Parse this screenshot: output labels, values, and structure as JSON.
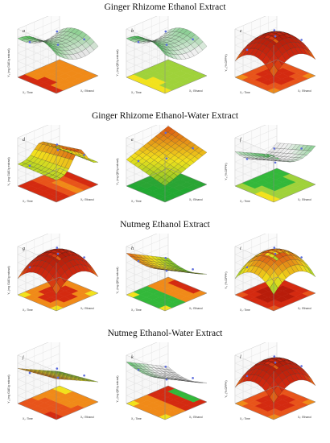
{
  "figure": {
    "sections": [
      {
        "title": "Ginger Rhizome Ethanol Extract"
      },
      {
        "title": "Ginger Rhizome Ethanol-Water Extract"
      },
      {
        "title": "Nutmeg Ethanol Extract"
      },
      {
        "title": "Nutmeg Ethanol-Water Extract"
      }
    ]
  },
  "colors": {
    "red": "#d42a10",
    "orange": "#f08a18",
    "yellow": "#f2e21c",
    "green": "#33b83a",
    "gray": "#c8c8c8",
    "design_point": "#5b6bdc"
  },
  "chart_data": [
    {
      "type": "surface3d",
      "panel_label": "a",
      "surface_shape": "saddle",
      "colormap": "gray-red",
      "floor_contour": "red-yellow-green",
      "ylabel": "Y₁ (mg GAE/g extract)",
      "xlabel": "X₁: Ethanol",
      "zlabel": "X₂: Time"
    },
    {
      "type": "surface3d",
      "panel_label": "b",
      "surface_shape": "saddle",
      "colormap": "gray-green",
      "floor_contour": "yellow-green",
      "ylabel": "Y₂ (mg QE/g extract)",
      "xlabel": "X₁: Ethanol",
      "zlabel": "X₂: Time"
    },
    {
      "type": "surface3d",
      "panel_label": "c",
      "surface_shape": "dome",
      "colormap": "red",
      "floor_contour": "red-yellow",
      "ylabel": "Y₃ (% DPPH)",
      "xlabel": "X₁: Ethanol",
      "zlabel": "X₂: Time"
    },
    {
      "type": "surface3d",
      "panel_label": "d",
      "surface_shape": "ridge",
      "colormap": "red-green",
      "floor_contour": "red-orange",
      "ylabel": "Y₁ (mg GAE/g extract)",
      "xlabel": "X₁: Ethanol",
      "zlabel": "X₂: Time"
    },
    {
      "type": "surface3d",
      "panel_label": "e",
      "surface_shape": "plane",
      "colormap": "green-red",
      "floor_contour": "green",
      "ylabel": "Y₂ (mg QE/g extract)",
      "xlabel": "X₁: Ethanol",
      "zlabel": "X₂: Time"
    },
    {
      "type": "surface3d",
      "panel_label": "f",
      "surface_shape": "valley",
      "colormap": "gray-green",
      "floor_contour": "yellow-green",
      "ylabel": "Y₃ (% DPPH)",
      "xlabel": "X₁: Ethanol",
      "zlabel": "X₂: Time"
    },
    {
      "type": "surface3d",
      "panel_label": "g",
      "surface_shape": "dome",
      "colormap": "red",
      "floor_contour": "red-green",
      "ylabel": "Y₁ (mg GAE/g extract)",
      "xlabel": "X₁: Ethanol",
      "zlabel": "X₂: Time"
    },
    {
      "type": "surface3d",
      "panel_label": "h",
      "surface_shape": "fold",
      "colormap": "green-red",
      "floor_contour": "yellow-green-red",
      "ylabel": "Y₂ (mg QE/g extract)",
      "xlabel": "X₁: Ethanol",
      "zlabel": "X₂: Time"
    },
    {
      "type": "surface3d",
      "panel_label": "i",
      "surface_shape": "dome",
      "colormap": "red-green",
      "floor_contour": "red",
      "ylabel": "Y₃ (% DPPH)",
      "xlabel": "X₁: Ethanol",
      "zlabel": "X₂: Time"
    },
    {
      "type": "surface3d",
      "panel_label": "j",
      "surface_shape": "slope",
      "colormap": "red-green",
      "floor_contour": "red-yellow",
      "ylabel": "Y₁ (mg GAE/g extract)",
      "xlabel": "X₁: Ethanol",
      "zlabel": "X₂: Time"
    },
    {
      "type": "surface3d",
      "panel_label": "k",
      "surface_shape": "fold",
      "colormap": "gray-green",
      "floor_contour": "yellow-red",
      "ylabel": "Y₂ (mg QE/g extract)",
      "xlabel": "X₁: Ethanol",
      "zlabel": "X₂: Time"
    },
    {
      "type": "surface3d",
      "panel_label": "l",
      "surface_shape": "dome",
      "colormap": "red",
      "floor_contour": "red-yellow",
      "ylabel": "Y₃ (% DPPH)",
      "xlabel": "X₁: Ethanol",
      "zlabel": "X₂: Time"
    }
  ]
}
